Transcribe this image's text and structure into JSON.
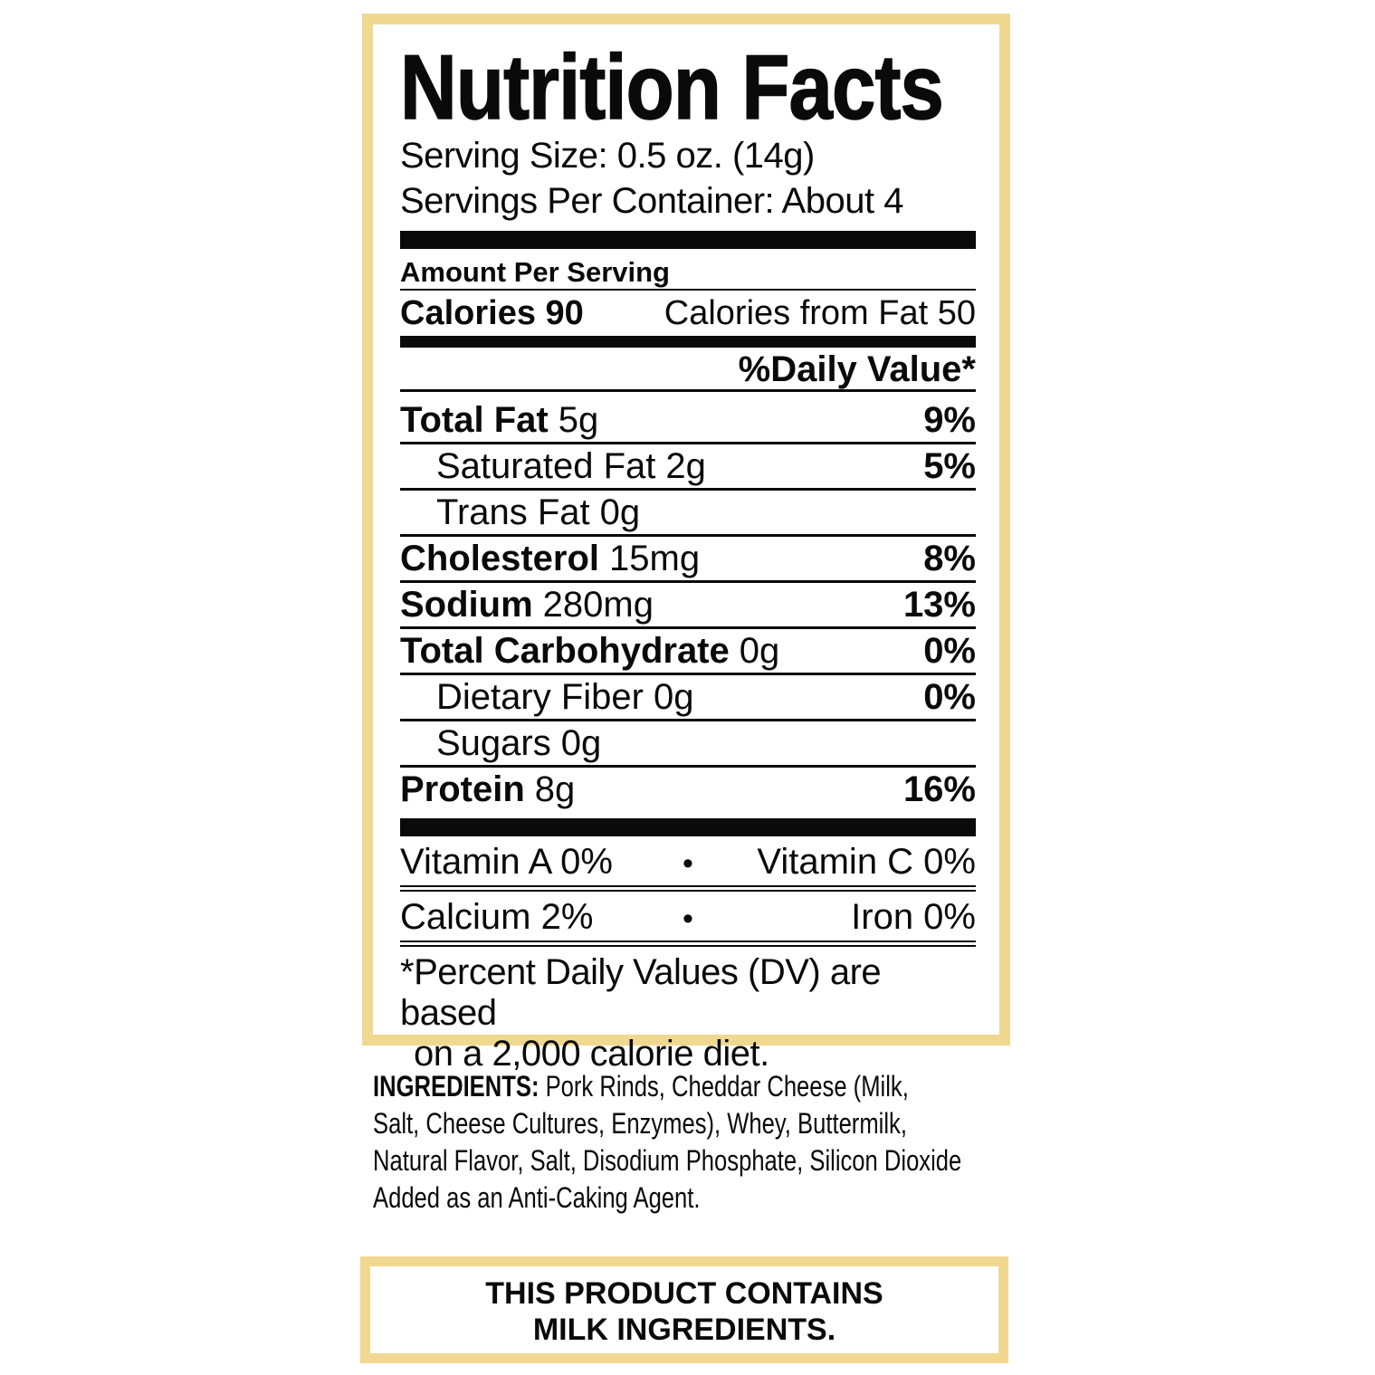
{
  "colors": {
    "border_gold": "#F1D890",
    "ink": "#0A0A0A",
    "background": "#FFFFFF"
  },
  "label": {
    "title": "Nutrition Facts",
    "serving_size": "Serving Size: 0.5 oz. (14g)",
    "servings_per_container": "Servings Per Container: About 4",
    "amount_per_serving": "Amount Per Serving",
    "calories": "Calories 90",
    "calories_from_fat": "Calories from Fat 50",
    "daily_value_header": "%Daily Value*",
    "rows": [
      {
        "name": "Total Fat",
        "amount": "5g",
        "dv": "9%"
      },
      {
        "name": "Saturated Fat",
        "amount": "2g",
        "dv": "5%"
      },
      {
        "name": "Trans Fat",
        "amount": "0g",
        "dv": ""
      },
      {
        "name": "Cholesterol",
        "amount": "15mg",
        "dv": "8%"
      },
      {
        "name": "Sodium",
        "amount": "280mg",
        "dv": "13%"
      },
      {
        "name": "Total Carbohydrate",
        "amount": "0g",
        "dv": "0%"
      },
      {
        "name": "Dietary Fiber",
        "amount": "0g",
        "dv": "0%"
      },
      {
        "name": "Sugars",
        "amount": "0g",
        "dv": ""
      },
      {
        "name": "Protein",
        "amount": "8g",
        "dv": "16%"
      }
    ],
    "micros": [
      {
        "left": "Vitamin A 0%",
        "bullet": "•",
        "right": "Vitamin C 0%"
      },
      {
        "left": "Calcium 2%",
        "bullet": "•",
        "right": "Iron 0%"
      }
    ],
    "footnote_line1": "*Percent Daily Values (DV) are based",
    "footnote_line2": "on a 2,000 calorie diet."
  },
  "ingredients": {
    "label": "INGREDIENTS:",
    "line1_rest": " Pork Rinds, Cheddar Cheese (Milk,",
    "line2": "Salt, Cheese Cultures, Enzymes), Whey, Buttermilk,",
    "line3": "Natural Flavor, Salt, Disodium Phosphate, Silicon Dioxide",
    "line4": "Added as an Anti-Caking Agent."
  },
  "allergen": {
    "line1": "THIS PRODUCT CONTAINS",
    "line2": "MILK INGREDIENTS."
  }
}
